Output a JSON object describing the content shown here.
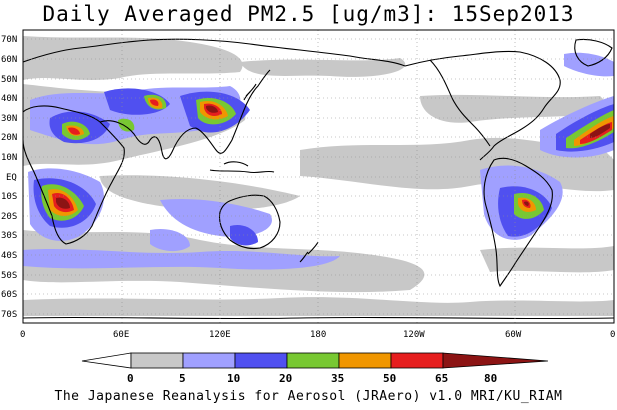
{
  "title": "Daily Averaged PM2.5 [ug/m3]: 15Sep2013",
  "footer": "The Japanese Reanalysis for Aerosol (JRAero) v1.0 MRI/KU_RIAM",
  "lat_labels": [
    "70N",
    "60N",
    "50N",
    "40N",
    "30N",
    "20N",
    "10N",
    "EQ",
    "10S",
    "20S",
    "30S",
    "40S",
    "50S",
    "60S",
    "70S"
  ],
  "lon_labels": [
    "0",
    "60E",
    "120E",
    "180",
    "120W",
    "60W",
    "0"
  ],
  "colorbar": {
    "levels": [
      "0",
      "5",
      "10",
      "20",
      "35",
      "50",
      "65",
      "80"
    ],
    "colors": [
      "#ffffff",
      "#c8c8c8",
      "#a0a0ff",
      "#5050f0",
      "#78c832",
      "#f09600",
      "#e61e1e",
      "#8c1414"
    ]
  }
}
